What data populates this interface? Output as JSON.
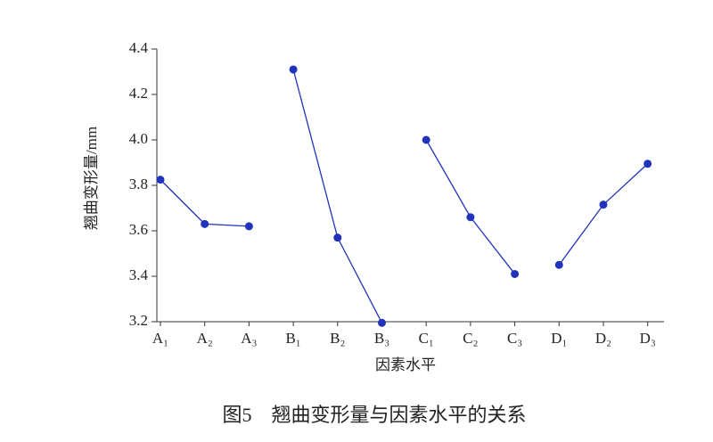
{
  "chart_data": {
    "type": "line",
    "y_label": "翘曲变形量/mm",
    "x_label": "因素水平",
    "caption": "图5　翘曲变形量与因素水平的关系",
    "categories": [
      "A₁",
      "A₂",
      "A₃",
      "B₁",
      "B₂",
      "B₃",
      "C₁",
      "C₂",
      "C₃",
      "D₁",
      "D₂",
      "D₃"
    ],
    "series": [
      {
        "color": "#2233bb",
        "values": [
          3.825,
          3.63,
          3.62,
          null,
          null,
          null,
          null,
          null,
          null,
          null,
          null,
          null
        ]
      },
      {
        "color": "#2233bb",
        "values": [
          null,
          null,
          null,
          4.31,
          3.57,
          3.195,
          null,
          null,
          null,
          null,
          null,
          null
        ]
      },
      {
        "color": "#2233bb",
        "values": [
          null,
          null,
          null,
          null,
          null,
          null,
          4.0,
          3.66,
          3.41,
          null,
          null,
          null
        ]
      },
      {
        "color": "#2233bb",
        "values": [
          null,
          null,
          null,
          null,
          null,
          null,
          null,
          null,
          null,
          3.45,
          3.715,
          3.895
        ]
      }
    ],
    "ylim": [
      3.2,
      4.4
    ],
    "yticks": [
      {
        "value": 3.2,
        "label": "3.2"
      },
      {
        "value": 3.4,
        "label": "3.4"
      },
      {
        "value": 3.6,
        "label": "3.6"
      },
      {
        "value": 3.8,
        "label": "3.8"
      },
      {
        "value": 4.0,
        "label": "4.0"
      },
      {
        "value": 4.2,
        "label": "4.2"
      },
      {
        "value": 4.4,
        "label": "4.4"
      }
    ]
  }
}
